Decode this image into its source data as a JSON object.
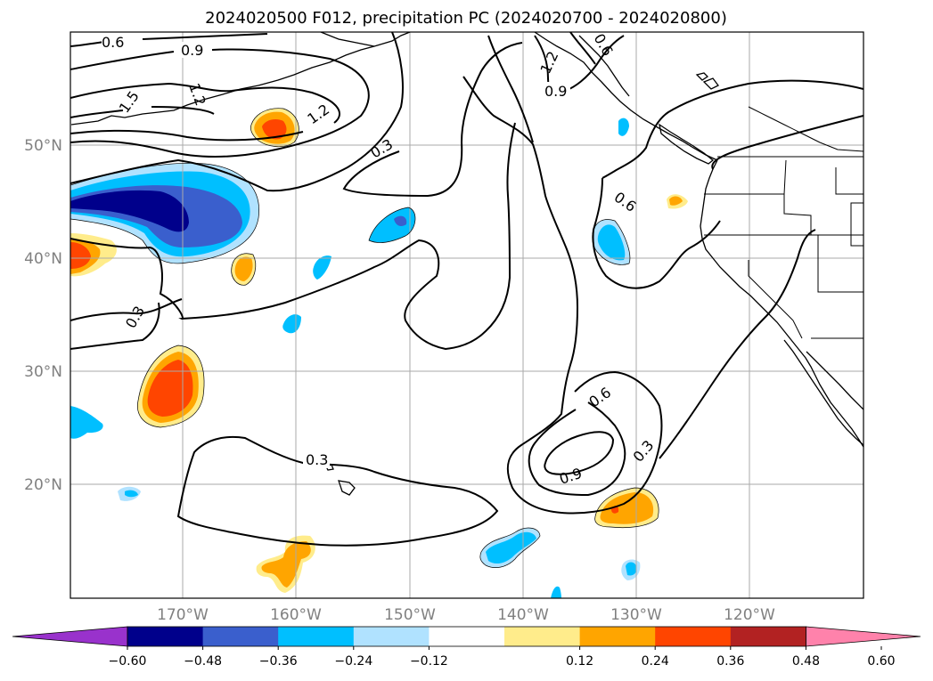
{
  "title": "2024020500 F012, precipitation PC (2024020700 - 2024020800)",
  "map": {
    "lat_labels": [
      "50°N",
      "40°N",
      "30°N",
      "20°N"
    ],
    "lon_labels": [
      "170°W",
      "160°W",
      "150°W",
      "140°W",
      "130°W",
      "120°W"
    ],
    "gridlines": true
  },
  "colorbar": {
    "ticks": [
      "−0.60",
      "−0.48",
      "−0.36",
      "−0.24",
      "−0.12",
      "0.12",
      "0.24",
      "0.36",
      "0.48",
      "0.60"
    ],
    "colors": [
      "#9932cc",
      "#00008b",
      "#3a5fcd",
      "#00bfff",
      "#b0e2ff",
      "#ffffff",
      "#ffec8b",
      "#ffa500",
      "#ff4500",
      "#b22222",
      "#ff82ab"
    ],
    "extend": "both"
  },
  "contour_labels": [
    "0.6",
    "0.9",
    "1.2",
    "1.5",
    "0.3",
    "0.6",
    "0.9",
    "0.3",
    "0.6",
    "0.9",
    "0.3",
    "0.6",
    "1.2",
    "0.6",
    "0.9"
  ]
}
